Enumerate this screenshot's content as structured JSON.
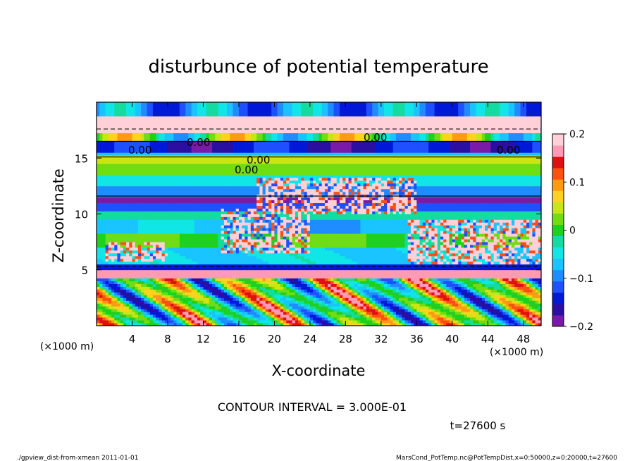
{
  "chart_data": {
    "type": "heatmap",
    "title": "disturbunce of potential temperature",
    "xlabel": "X-coordinate",
    "ylabel": "Z-coordinate",
    "x_unit": "(×1000 m)",
    "y_unit": "(×1000 m)",
    "x_range": [
      0,
      50
    ],
    "y_range": [
      0,
      20
    ],
    "x_ticks": [
      "4",
      "8",
      "12",
      "16",
      "20",
      "24",
      "28",
      "32",
      "36",
      "40",
      "44",
      "48"
    ],
    "y_ticks": [
      "5",
      "10",
      "15"
    ],
    "colorbar": {
      "range": [
        -0.2,
        0.2
      ],
      "tick_labels": [
        "0.2",
        "0.1",
        "0",
        "−0.1",
        "−0.2"
      ],
      "tick_values": [
        0.2,
        0.1,
        0,
        -0.1,
        -0.2
      ],
      "colors": [
        "#7a1aa8",
        "#2a0fa0",
        "#0018d8",
        "#1f50ff",
        "#1f8cff",
        "#19c4ff",
        "#10e6e6",
        "#14dca0",
        "#20d020",
        "#70dc14",
        "#c8e614",
        "#ffd21e",
        "#ff9a14",
        "#ff5014",
        "#e01010",
        "#ff9ab4",
        "#ffd0d8"
      ]
    },
    "contour_labels": [
      "0.00",
      "0.00",
      "0.00",
      "0.00",
      "0.00",
      "0.00"
    ],
    "contour_interval": "CONTOUR INTERVAL = 3.000E-01",
    "time": "t=27600 s"
  },
  "footer": {
    "left": "./gpview_dist-from-xmean  2011-01-01",
    "right": "MarsCond_PotTemp.nc@PotTempDist,x=0:50000,z=0:20000,t=27600"
  }
}
